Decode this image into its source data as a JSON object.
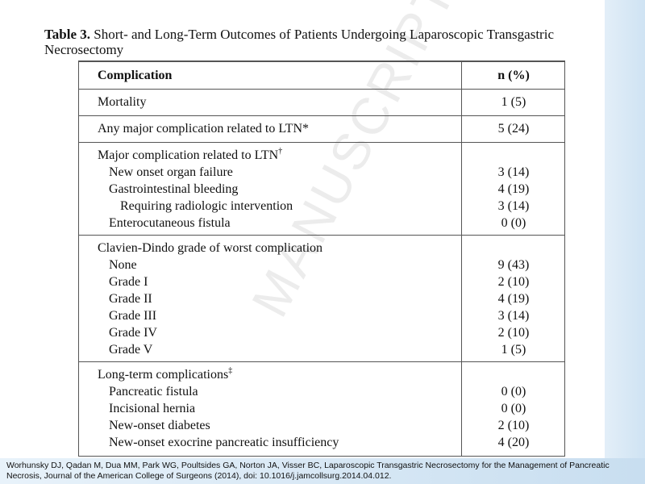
{
  "header": {
    "title_bold": "Table 3.",
    "title": "Short- and Long-Term Outcomes of Patients Undergoing Laparoscopic Transgastric Necrosectomy"
  },
  "table": {
    "columns": [
      "Complication",
      "n (%)"
    ],
    "sections": [
      {
        "label": "Mortality",
        "value": "1 (5)"
      },
      {
        "label": "Any major complication related to LTN*",
        "value": "5 (24)"
      },
      {
        "label": "Major complication related to LTN",
        "mark": "†",
        "items": [
          {
            "label": "New onset organ failure",
            "value": "3 (14)"
          },
          {
            "label": "Gastrointestinal bleeding",
            "value": "4 (19)",
            "items": [
              {
                "label": "Requiring radiologic intervention",
                "value": "3 (14)"
              }
            ]
          },
          {
            "label": "Enterocutaneous fistula",
            "value": "0 (0)"
          }
        ]
      },
      {
        "label": "Clavien-Dindo grade of worst complication",
        "items": [
          {
            "label": "None",
            "value": "9 (43)"
          },
          {
            "label": "Grade I",
            "value": "2 (10)"
          },
          {
            "label": "Grade II",
            "value": "4 (19)"
          },
          {
            "label": "Grade III",
            "value": "3 (14)"
          },
          {
            "label": "Grade IV",
            "value": "2 (10)"
          },
          {
            "label": "Grade V",
            "value": "1 (5)"
          }
        ]
      },
      {
        "label": "Long-term complications",
        "mark": "‡",
        "items": [
          {
            "label": "Pancreatic fistula",
            "value": "0 (0)"
          },
          {
            "label": "Incisional hernia",
            "value": "0 (0)"
          },
          {
            "label": "New-onset diabetes",
            "value": "2 (10)"
          },
          {
            "label": "New-onset exocrine pancreatic insufficiency",
            "value": "4 (20)"
          }
        ]
      }
    ]
  },
  "watermark": "MANUSCRIPT",
  "footer": "Worhunsky DJ, Qadan M, Dua MM, Park WG, Poultsides GA, Norton JA, Visser BC, Laparoscopic Transgastric Necrosectomy for the Management of Pancreatic Necrosis, Journal of the American College of Surgeons (2014), doi: 10.1016/j.jamcollsurg.2014.04.012."
}
